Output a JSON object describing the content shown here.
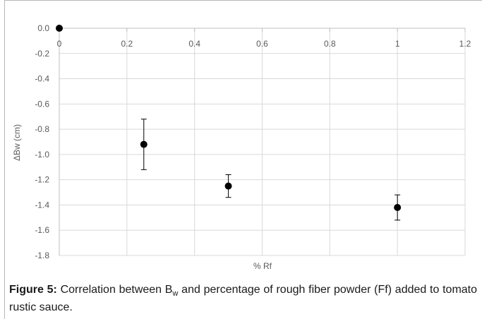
{
  "chart_data": {
    "type": "scatter",
    "title": "",
    "xlabel": "% Rf",
    "ylabel": "ΔBw (cm)",
    "xlim": [
      0,
      1.2
    ],
    "ylim": [
      -1.8,
      0.0
    ],
    "x_ticks": [
      "0",
      "0.2",
      "0.4",
      "0.6",
      "0.8",
      "1",
      "1.2"
    ],
    "y_ticks": [
      "0.0",
      "-0.2",
      "-0.4",
      "-0.6",
      "-0.8",
      "-1.0",
      "-1.2",
      "-1.4",
      "-1.6",
      "-1.8"
    ],
    "grid": true,
    "legend": "none",
    "series": [
      {
        "x": [
          0,
          0.25,
          0.5,
          1.0
        ],
        "y": [
          0.0,
          -0.92,
          -1.25,
          -1.42
        ],
        "error": [
          0,
          0.2,
          0.09,
          0.1
        ]
      }
    ],
    "colors": {
      "point": "#000000",
      "grid": "#d9d9d9",
      "axis_text": "#595959"
    }
  },
  "caption": {
    "label": "Figure 5:",
    "text_before_sub": " Correlation between B",
    "subscript": "w",
    "text_after_sub": " and percentage of rough fiber powder (Ff) added to tomato rustic sauce."
  }
}
